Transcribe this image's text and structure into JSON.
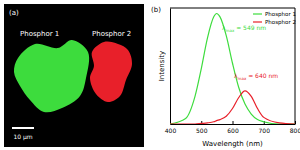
{
  "image_panel": {
    "panel_label": "(a)",
    "labels": [
      "Phosphor 1",
      "Phosphor 2"
    ],
    "scale_bar": "10 μm"
  },
  "chart_data": {
    "type": "line",
    "panel_label": "(b)",
    "x_label": "Wavelength (nm)",
    "y_label": "Intensity",
    "x": [
      400,
      450,
      480,
      500,
      520,
      540,
      549,
      560,
      580,
      600,
      620,
      640,
      660,
      680,
      700,
      750,
      800
    ],
    "series": [
      {
        "name": "Phosphor 1",
        "color": "#3ddc3d",
        "values": [
          0,
          0.05,
          0.25,
          0.5,
          0.78,
          0.97,
          1.0,
          0.97,
          0.8,
          0.55,
          0.33,
          0.18,
          0.09,
          0.04,
          0.02,
          0,
          0
        ]
      },
      {
        "name": "Phosphor 2",
        "color": "#e8202a",
        "values": [
          0,
          0,
          0,
          0.005,
          0.01,
          0.02,
          0.03,
          0.04,
          0.07,
          0.14,
          0.24,
          0.3,
          0.25,
          0.14,
          0.06,
          0.01,
          0
        ]
      }
    ],
    "annotations": [
      {
        "symbol": "λ",
        "subscript": "max",
        "text": " = 549 nm",
        "color": "#3ddc3d"
      },
      {
        "symbol": "λ",
        "subscript": "max",
        "text": " = 640 nm",
        "color": "#e8202a"
      }
    ],
    "xlim": [
      400,
      800
    ],
    "xticks": [
      400,
      500,
      600,
      700,
      800
    ],
    "ylim": [
      0,
      1.05
    ],
    "tick_labels": "x",
    "legend": "upper right"
  }
}
